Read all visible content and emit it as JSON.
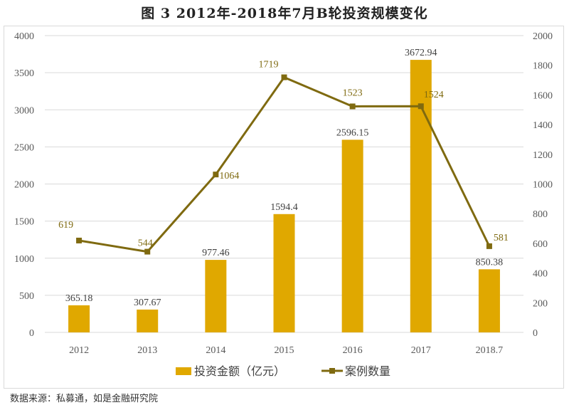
{
  "title": "图 3    2012年-2018年7月B轮投资规模变化",
  "source": "数据来源：私募通，如是金融研究院",
  "chart_data": {
    "type": "bar+line",
    "title": "图 3    2012年-2018年7月B轮投资规模变化",
    "categories": [
      "2012",
      "2013",
      "2014",
      "2015",
      "2016",
      "2017",
      "2018.7"
    ],
    "series": [
      {
        "name": "投资金额（亿元）",
        "type": "bar",
        "axis": "left",
        "color": "#e0a800",
        "values": [
          365.18,
          307.67,
          977.46,
          1594.4,
          2596.15,
          3672.94,
          850.38
        ],
        "labels": [
          "365.18",
          "307.67",
          "977.46",
          "1594.4",
          "2596.15",
          "3672.94",
          "850.38"
        ]
      },
      {
        "name": "案例数量",
        "type": "line",
        "axis": "right",
        "color": "#7f6a10",
        "values": [
          619,
          544,
          1064,
          1719,
          1523,
          1524,
          581
        ],
        "labels": [
          "619",
          "544",
          "1064",
          "1719",
          "1523",
          "1524",
          "581"
        ]
      }
    ],
    "y_left": {
      "lim": [
        0,
        4000
      ],
      "ticks": [
        "0",
        "500",
        "1000",
        "1500",
        "2000",
        "2500",
        "3000",
        "3500",
        "4000"
      ]
    },
    "y_right": {
      "lim": [
        0,
        2000
      ],
      "ticks": [
        "0",
        "200",
        "400",
        "600",
        "800",
        "1000",
        "1200",
        "1400",
        "1600",
        "1800",
        "2000"
      ]
    },
    "grid": true,
    "legend": "bottom"
  }
}
